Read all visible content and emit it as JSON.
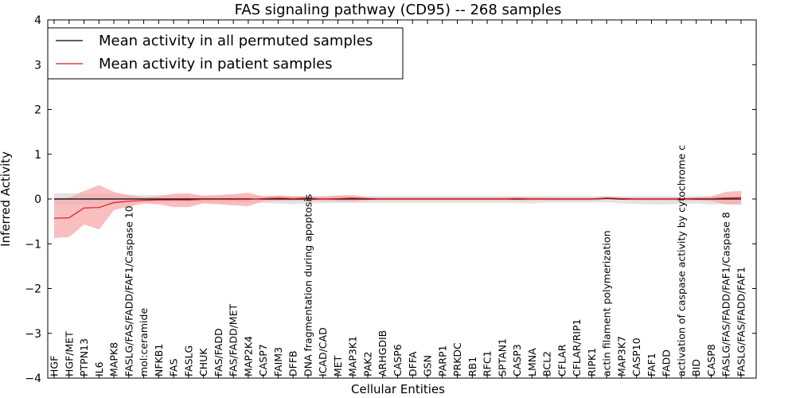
{
  "chart_data": {
    "type": "line",
    "title": "FAS signaling pathway (CD95) -- 268 samples",
    "xlabel": "Cellular Entities",
    "ylabel": "Inferred Activity",
    "ylim": [
      -4,
      4
    ],
    "yticks": [
      -4,
      -3,
      -2,
      -1,
      0,
      1,
      2,
      3,
      4
    ],
    "ytick_labels": [
      "−4",
      "−3",
      "−2",
      "−1",
      "0",
      "1",
      "2",
      "3",
      "4"
    ],
    "grid": false,
    "legend_position": "top-left",
    "categories": [
      "HGF",
      "HGF/MET",
      "PTPN13",
      "IL6",
      "MAPK8",
      "FASLG/FAS/FADD/FAF1/Caspase 10",
      "mol:ceramide",
      "NFKB1",
      "FAS",
      "FASLG",
      "CHUK",
      "FAS/FADD",
      "FAS/FADD/MET",
      "MAP2K4",
      "CASP7",
      "FAIM3",
      "DFFB",
      "DNA fragmentation during apoptosis",
      "ICAD/CAD",
      "MET",
      "MAP3K1",
      "PAK2",
      "ARHGDIB",
      "CASP6",
      "DFFA",
      "GSN",
      "PARP1",
      "PRKDC",
      "RB1",
      "RFC1",
      "SPTAN1",
      "CASP3",
      "LMNA",
      "BCL2",
      "CFLAR",
      "CFLAR/RIP1",
      "RIPK1",
      "actin filament polymerization",
      "MAP3K7",
      "CASP10",
      "FAF1",
      "FADD",
      "activation of caspase activity by cytochrome c",
      "BID",
      "CASP8",
      "FASLG/FAS/FADD/FAF1/Caspase 8",
      "FASLG/FAS/FADD/FAF1"
    ],
    "series": [
      {
        "name": "Mean activity in all permuted samples",
        "color": "#000000",
        "band_color": "#cccccc",
        "values": [
          0,
          0,
          0,
          0,
          0,
          0,
          0,
          0,
          0,
          0,
          0,
          0,
          0,
          0,
          0,
          0,
          0,
          0,
          0,
          0,
          0,
          0,
          0,
          0,
          0,
          0,
          0,
          0,
          0,
          0,
          0,
          0,
          0,
          0,
          0,
          0,
          0,
          0.01,
          0,
          0,
          0,
          0,
          0,
          0,
          0,
          0,
          0
        ],
        "upper": [
          0.13,
          0.13,
          0.12,
          0.12,
          0.11,
          0.1,
          0.09,
          0.09,
          0.08,
          0.08,
          0.08,
          0.08,
          0.07,
          0.07,
          0.07,
          0.07,
          0.07,
          0.07,
          0.07,
          0.07,
          0.06,
          0.06,
          0.06,
          0.06,
          0.06,
          0.06,
          0.06,
          0.06,
          0.06,
          0.06,
          0.06,
          0.06,
          0.06,
          0.06,
          0.06,
          0.06,
          0.06,
          0.07,
          0.06,
          0.06,
          0.06,
          0.06,
          0.06,
          0.06,
          0.06,
          0.07,
          0.07
        ],
        "lower": [
          -0.13,
          -0.13,
          -0.12,
          -0.12,
          -0.11,
          -0.1,
          -0.09,
          -0.09,
          -0.08,
          -0.08,
          -0.08,
          -0.08,
          -0.08,
          -0.08,
          -0.09,
          -0.1,
          -0.11,
          -0.1,
          -0.09,
          -0.09,
          -0.09,
          -0.09,
          -0.09,
          -0.09,
          -0.09,
          -0.09,
          -0.09,
          -0.09,
          -0.09,
          -0.09,
          -0.09,
          -0.09,
          -0.1,
          -0.08,
          -0.08,
          -0.08,
          -0.08,
          -0.07,
          -0.1,
          -0.11,
          -0.12,
          -0.12,
          -0.11,
          -0.1,
          -0.12,
          -0.12,
          -0.12
        ]
      },
      {
        "name": "Mean activity in patient samples",
        "color": "#e0191e",
        "band_color": "#f7a8aa",
        "values": [
          -0.43,
          -0.42,
          -0.2,
          -0.19,
          -0.08,
          -0.05,
          -0.03,
          -0.02,
          -0.02,
          -0.02,
          -0.01,
          -0.01,
          -0.01,
          -0.01,
          0.01,
          0.02,
          0.01,
          0.02,
          0.0,
          0.01,
          0.02,
          0.01,
          0.0,
          0.0,
          0.0,
          0.0,
          0.0,
          0.0,
          0.0,
          0.0,
          0.0,
          0.01,
          0.0,
          0.0,
          0.0,
          0.0,
          0.0,
          0.02,
          0.01,
          0.0,
          0.0,
          0.0,
          0.0,
          0.01,
          0.01,
          0.02,
          0.03
        ],
        "upper": [
          0.02,
          0.03,
          0.18,
          0.31,
          0.16,
          0.08,
          0.04,
          0.06,
          0.12,
          0.13,
          0.07,
          0.09,
          0.11,
          0.14,
          0.06,
          0.08,
          0.06,
          0.05,
          0.05,
          0.08,
          0.09,
          0.04,
          0.04,
          0.04,
          0.04,
          0.04,
          0.04,
          0.04,
          0.04,
          0.04,
          0.04,
          0.05,
          0.04,
          0.04,
          0.03,
          0.03,
          0.03,
          0.05,
          0.03,
          0.03,
          0.03,
          0.03,
          0.03,
          0.04,
          0.06,
          0.16,
          0.18
        ],
        "lower": [
          -0.87,
          -0.85,
          -0.57,
          -0.68,
          -0.25,
          -0.17,
          -0.1,
          -0.12,
          -0.18,
          -0.18,
          -0.1,
          -0.12,
          -0.14,
          -0.16,
          -0.05,
          -0.04,
          -0.04,
          -0.03,
          -0.04,
          -0.05,
          -0.06,
          -0.03,
          -0.03,
          -0.03,
          -0.03,
          -0.03,
          -0.03,
          -0.03,
          -0.03,
          -0.03,
          -0.03,
          -0.03,
          -0.03,
          -0.03,
          -0.03,
          -0.03,
          -0.03,
          -0.01,
          -0.02,
          -0.03,
          -0.03,
          -0.03,
          -0.03,
          -0.03,
          -0.05,
          -0.12,
          -0.12
        ]
      }
    ]
  }
}
